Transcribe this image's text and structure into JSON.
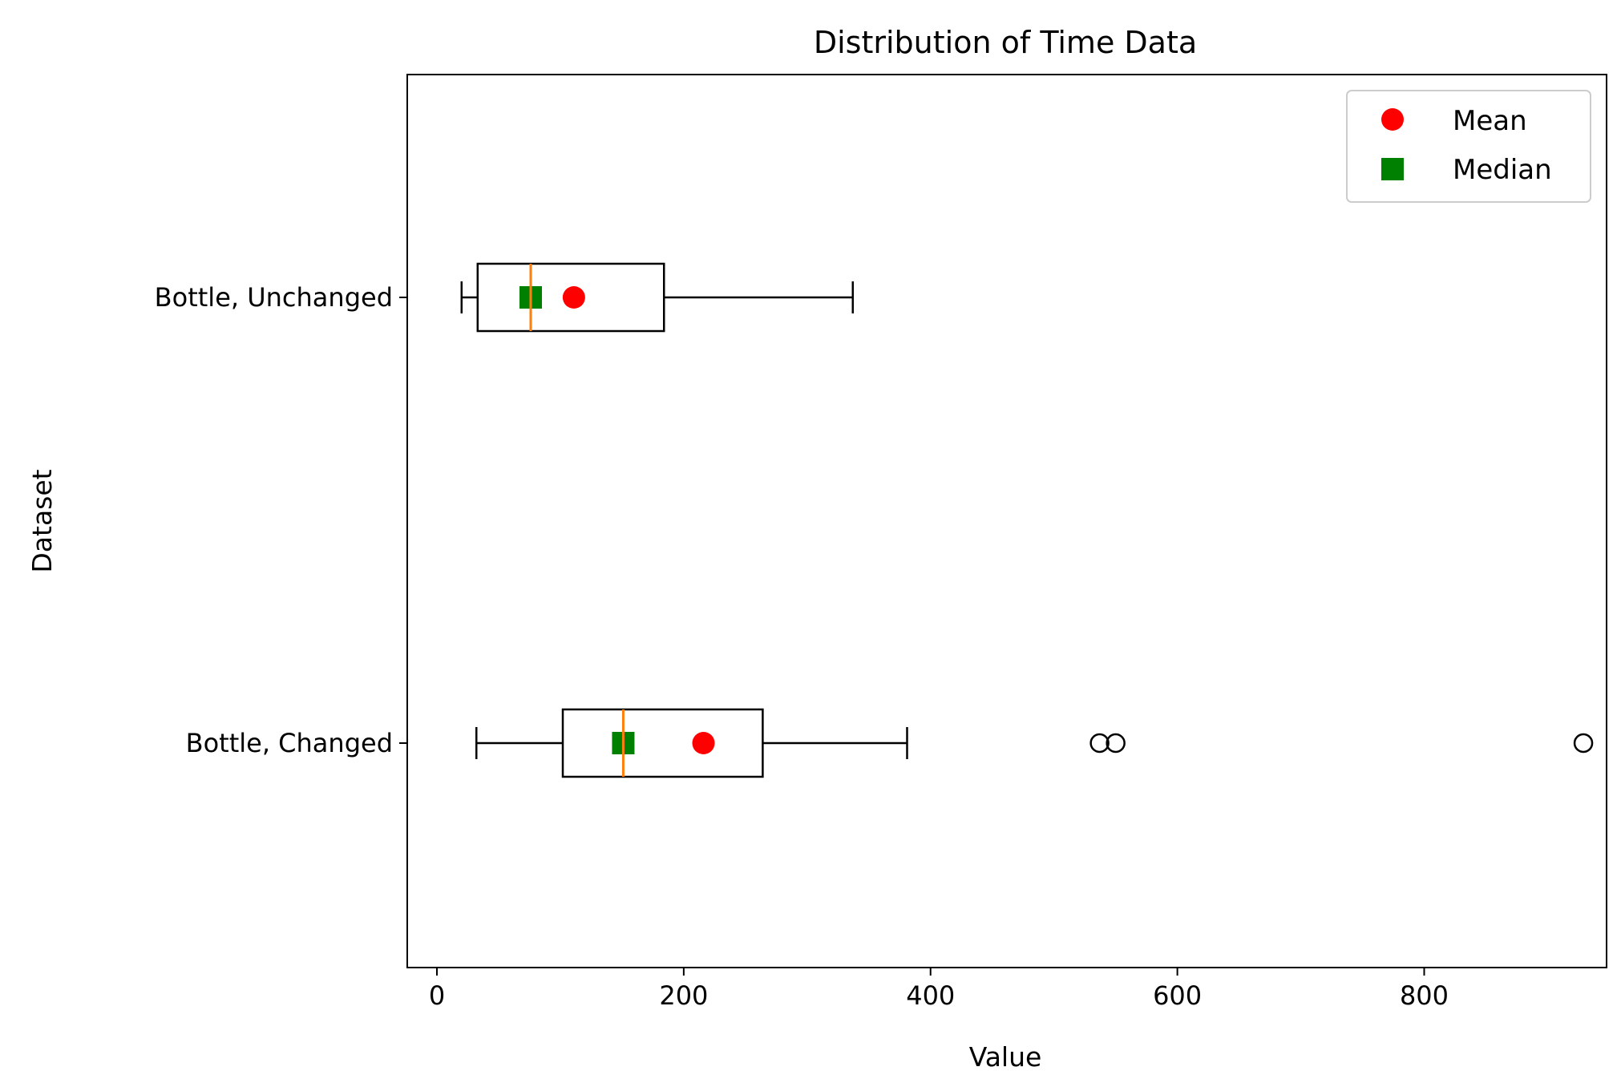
{
  "chart_data": {
    "type": "boxplot",
    "orientation": "horizontal",
    "title": "Distribution of Time Data",
    "xlabel": "Value",
    "ylabel": "Dataset",
    "xlim": [
      -40,
      975
    ],
    "xticks": [
      0,
      200,
      400,
      600,
      800
    ],
    "grid": false,
    "legend_position": "top-right",
    "legend": [
      {
        "label": "Mean",
        "marker": "circle",
        "color": "#ff0000"
      },
      {
        "label": "Median",
        "marker": "square",
        "color": "#008000"
      }
    ],
    "colors": {
      "box": "#000000",
      "median_line": "#ff7f0e",
      "mean": "#ff0000",
      "median_marker": "#008000"
    },
    "datasets": [
      {
        "name": "Bottle, Unchanged",
        "whisker_low": 20,
        "q1": 33,
        "median": 76,
        "q3": 184,
        "whisker_high": 337,
        "mean": 111,
        "outliers": []
      },
      {
        "name": "Bottle, Changed",
        "whisker_low": 32,
        "q1": 102,
        "median": 151,
        "q3": 264,
        "whisker_high": 381,
        "mean": 216,
        "outliers": [
          537,
          550,
          929
        ]
      }
    ]
  }
}
